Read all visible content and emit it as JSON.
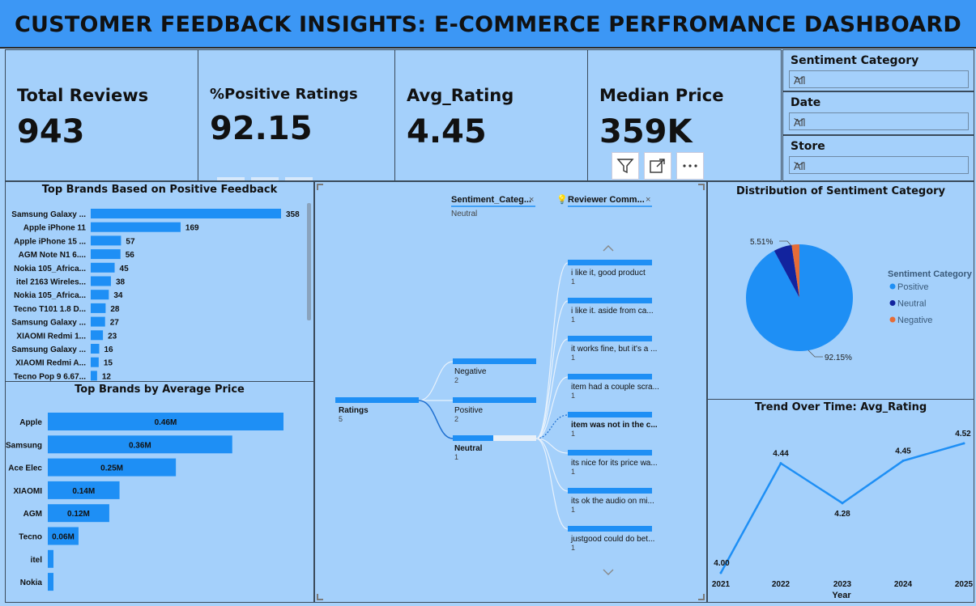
{
  "header": {
    "title": "CUSTOMER FEEDBACK INSIGHTS: E-COMMERCE PERFROMANCE DASHBOARD"
  },
  "kpis": [
    {
      "label": "Total Reviews",
      "value": "943"
    },
    {
      "label": "%Positive Ratings",
      "value": "92.15"
    },
    {
      "label": "Avg_Rating",
      "value": "4.45"
    },
    {
      "label": "Median Price",
      "value": "359K"
    }
  ],
  "slicers": [
    {
      "title": "Sentiment Category",
      "value": "All"
    },
    {
      "title": "Date",
      "value": "All"
    },
    {
      "title": "Store",
      "value": "All"
    }
  ],
  "toolbar": {
    "icons": [
      "filter-icon",
      "focus-mode-icon",
      "more-options-icon"
    ]
  },
  "colors": {
    "bar": "#1e8ff5",
    "header": "#3c97f5",
    "panel": "#a4d0fb",
    "positive": "#1e8ff5",
    "neutral": "#12239e",
    "negative": "#e66c37"
  },
  "chart_data": [
    {
      "type": "bar",
      "orientation": "horizontal",
      "title": "Top Brands Based on Positive Feedback",
      "categories": [
        "Samsung Galaxy ...",
        "Apple iPhone 11",
        "Apple iPhone 15 ...",
        "AGM Note N1 6....",
        "Nokia 105_Africa...",
        "itel 2163 Wireles...",
        "Nokia 105_Africa...",
        "Tecno T101 1.8 D...",
        "Samsung Galaxy ...",
        "XIAOMI Redmi 1...",
        "Samsung Galaxy ...",
        "XIAOMI Redmi A...",
        "Tecno Pop 9 6.67..."
      ],
      "values": [
        358,
        169,
        57,
        56,
        45,
        38,
        34,
        28,
        27,
        23,
        16,
        15,
        12
      ],
      "xlim": [
        0,
        358
      ]
    },
    {
      "type": "bar",
      "orientation": "horizontal",
      "title": "Top Brands by Average Price",
      "categories": [
        "Apple",
        "Samsung",
        "Ace Elec",
        "XIAOMI",
        "AGM",
        "Tecno",
        "itel",
        "Nokia"
      ],
      "values": [
        0.46,
        0.36,
        0.25,
        0.14,
        0.12,
        0.06,
        0.01,
        0.01
      ],
      "labels": [
        "0.46M",
        "0.36M",
        "0.25M",
        "0.14M",
        "0.12M",
        "0.06M",
        "",
        ""
      ],
      "xlim": [
        0,
        0.46
      ]
    },
    {
      "type": "decomposition-tree",
      "root": {
        "label": "Ratings",
        "value": 5
      },
      "levels": [
        {
          "header": "Sentiment_Categ...",
          "filter": "Neutral"
        },
        {
          "header": "Reviewer Comm..."
        }
      ],
      "nodes": [
        {
          "label": "Negative",
          "value": 2
        },
        {
          "label": "Positive",
          "value": 2
        },
        {
          "label": "Neutral",
          "value": 1
        }
      ],
      "leaves": [
        {
          "label": "i like it, good product",
          "value": 1
        },
        {
          "label": "i like it. aside from ca...",
          "value": 1
        },
        {
          "label": "it works fine, but it's a ...",
          "value": 1
        },
        {
          "label": "item had a couple scra...",
          "value": 1
        },
        {
          "label": "item was not in the c...",
          "value": 1
        },
        {
          "label": "its nice for its price wa...",
          "value": 1
        },
        {
          "label": "its ok the audio on mi...",
          "value": 1
        },
        {
          "label": "justgood could do bet...",
          "value": 1
        }
      ]
    },
    {
      "type": "pie",
      "title": "Distribution of Sentiment Category",
      "legend_title": "Sentiment Category",
      "categories": [
        "Positive",
        "Neutral",
        "Negative"
      ],
      "values": [
        92.15,
        5.51,
        2.34
      ],
      "labels": [
        "92.15%",
        "5.51%",
        ""
      ],
      "legend": "right"
    },
    {
      "type": "line",
      "title": "Trend Over Time: Avg_Rating",
      "xlabel": "Year",
      "x": [
        "2021",
        "2022",
        "2023",
        "2024",
        "2025"
      ],
      "values": [
        4.0,
        4.44,
        4.28,
        4.45,
        4.52
      ],
      "labels": [
        "4.00",
        "4.44",
        "4.28",
        "4.45",
        "4.52"
      ],
      "ylim": [
        4.0,
        4.52
      ]
    }
  ]
}
